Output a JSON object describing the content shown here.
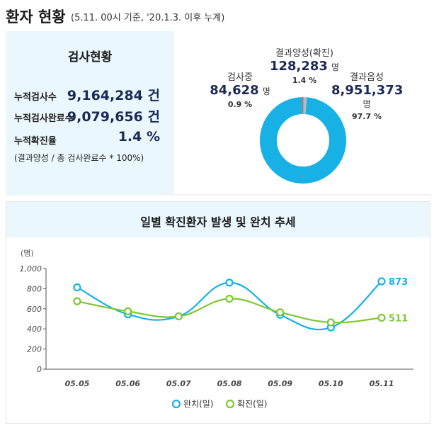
{
  "header": {
    "title": "환자 현황",
    "subtitle": "(5.11. 00시 기준, '20.1.3. 이후 누계)"
  },
  "stats": {
    "title": "검사현황",
    "rows": [
      {
        "label": "누적검사수",
        "value": "9,164,284 건"
      },
      {
        "label": "누적검사완료수",
        "value": "9,079,656 건"
      },
      {
        "label": "누적확진율",
        "value": "1.4 %"
      }
    ],
    "note": "(결과양성 / 총 검사완료수 * 100%)"
  },
  "donut": {
    "positive": {
      "name": "결과양성(확진)",
      "value": "128,283",
      "unit": "명",
      "pct": "1.4 %"
    },
    "testing": {
      "name": "검사중",
      "value": "84,628",
      "unit": "명",
      "pct": "0.9 %"
    },
    "negative": {
      "name": "결과음성",
      "value": "8,951,373",
      "unit": "명",
      "pct": "97.7 %"
    },
    "colors": {
      "negative": "#17b1e6",
      "positive": "#b8bcc2",
      "testing": "#7f8790"
    }
  },
  "chart_title": "일별 확진환자 발생 및 완치 추세",
  "chart_data": {
    "type": "line",
    "categories": [
      "05.05",
      "05.06",
      "05.07",
      "05.08",
      "05.09",
      "05.10",
      "05.11"
    ],
    "series": [
      {
        "name": "완치(일)",
        "values": [
          813,
          545,
          525,
          860,
          540,
          415,
          873
        ],
        "color": "#17b1e6"
      },
      {
        "name": "확진(일)",
        "values": [
          675,
          575,
          525,
          700,
          565,
          465,
          511
        ],
        "color": "#7ec832"
      }
    ],
    "ylabel": "(명)",
    "ylim": [
      0,
      1000
    ],
    "yticks": [
      "0",
      "200",
      "400",
      "600",
      "800",
      "1,000"
    ],
    "end_labels": [
      "873",
      "511"
    ],
    "legend": "bottom-center",
    "grid": false
  }
}
